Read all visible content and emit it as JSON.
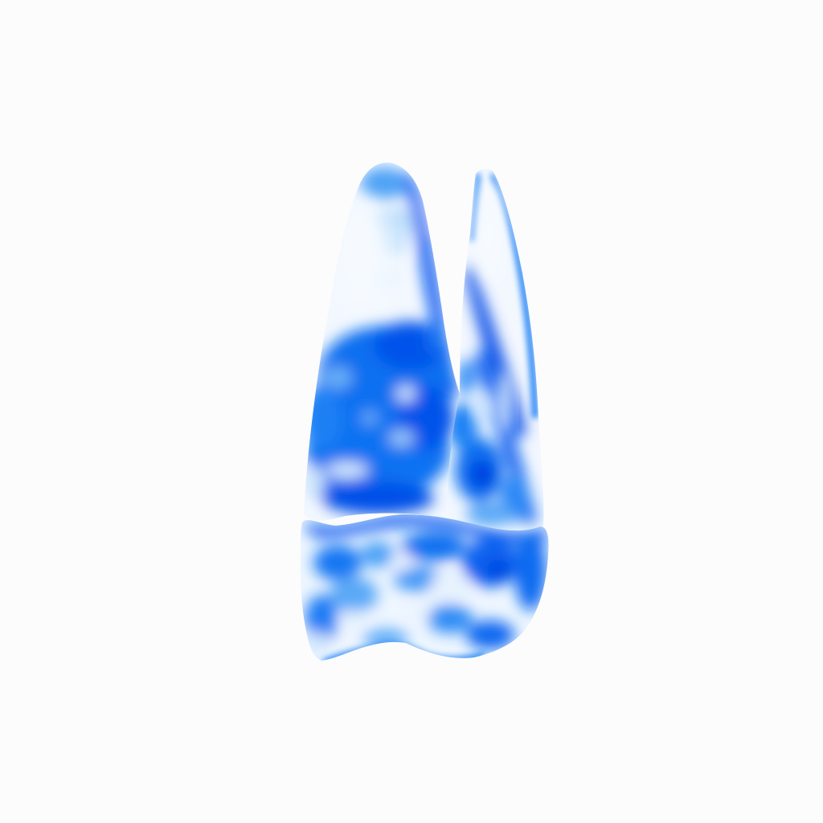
{
  "scene": {
    "subject": "tooth-3d-render",
    "background_color": "#fcfcfd",
    "palette": {
      "deep": "#0047e6",
      "mid": "#0a6ff0",
      "light": "#5aa8f7",
      "pale": "#cfe6fd",
      "white": "#f4f9ff"
    }
  }
}
